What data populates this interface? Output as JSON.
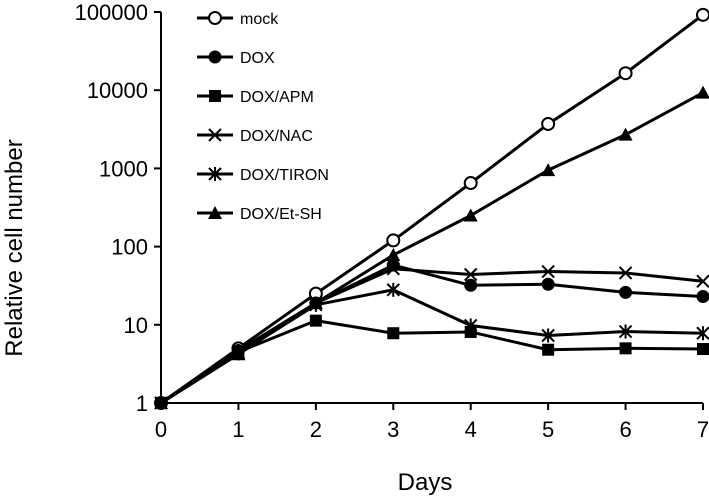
{
  "chart_data": {
    "type": "line",
    "scale": "log",
    "xlabel": "Days",
    "ylabel": "Relative cell number",
    "x": [
      0,
      1,
      2,
      3,
      4,
      5,
      6,
      7
    ],
    "xticks": [
      "0",
      "1",
      "2",
      "3",
      "4",
      "5",
      "6",
      "7"
    ],
    "yticks": [
      1,
      10,
      100,
      1000,
      10000,
      100000
    ],
    "ytick_labels": [
      "1",
      "10",
      "100",
      "1000",
      "10000",
      "100000"
    ],
    "xlim": [
      0,
      7
    ],
    "ylim": [
      1,
      100000
    ],
    "legend_position": "top-left",
    "series": [
      {
        "name": "mock",
        "marker": "circle-open",
        "values": [
          1,
          5,
          25,
          120,
          650,
          3700,
          16500,
          92000
        ]
      },
      {
        "name": "DOX",
        "marker": "circle-filled",
        "values": [
          1,
          4.7,
          19,
          58,
          32,
          33,
          26,
          23
        ]
      },
      {
        "name": "DOX/APM",
        "marker": "square-filled",
        "values": [
          1,
          4.5,
          11.3,
          7.8,
          8.1,
          4.8,
          5.0,
          4.9
        ]
      },
      {
        "name": "DOX/NAC",
        "marker": "x",
        "values": [
          1,
          4.4,
          19,
          52,
          44,
          48,
          46,
          36
        ]
      },
      {
        "name": "DOX/TIRON",
        "marker": "asterisk",
        "values": [
          1,
          4.3,
          18,
          28,
          9.8,
          7.3,
          8.2,
          7.8
        ]
      },
      {
        "name": "DOX/Et-SH",
        "marker": "triangle-filled",
        "values": [
          1,
          4.2,
          19,
          78,
          250,
          950,
          2700,
          9300
        ]
      }
    ]
  }
}
